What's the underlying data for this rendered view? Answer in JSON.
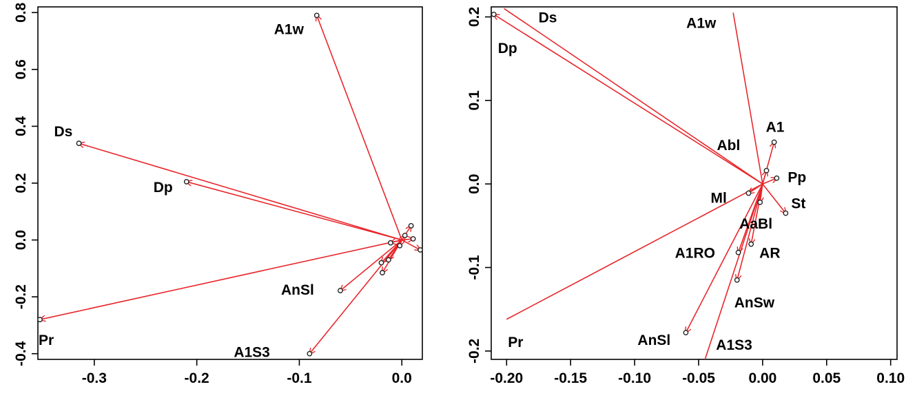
{
  "chart_data": [
    {
      "type": "scatter",
      "title": "",
      "xlabel": "",
      "ylabel": "",
      "xlim": [
        -0.355,
        0.02
      ],
      "ylim": [
        -0.42,
        0.82
      ],
      "xticks": [
        "-0.3",
        "-0.2",
        "-0.1",
        "0.0"
      ],
      "xtick_values": [
        -0.3,
        -0.2,
        -0.1,
        0.0
      ],
      "yticks": [
        "-0.4",
        "-0.2",
        "0.0",
        "0.2",
        "0.4",
        "0.6",
        "0.8"
      ],
      "ytick_values": [
        -0.4,
        -0.2,
        0.0,
        0.2,
        0.4,
        0.6,
        0.8
      ],
      "grid": false,
      "arrow_origin": [
        0.0,
        0.0
      ],
      "arrows": [
        {
          "x": -0.083,
          "y": 0.79,
          "label": "A1w"
        },
        {
          "x": -0.315,
          "y": 0.34,
          "label": "Ds"
        },
        {
          "x": -0.21,
          "y": 0.205,
          "label": "Dp"
        },
        {
          "x": -0.353,
          "y": -0.28,
          "label": "Pr"
        },
        {
          "x": -0.06,
          "y": -0.178,
          "label": "AnSl"
        },
        {
          "x": -0.09,
          "y": -0.4,
          "label": "A1S3"
        },
        {
          "x": 0.009,
          "y": 0.05,
          "label": ""
        },
        {
          "x": 0.018,
          "y": -0.035,
          "label": ""
        },
        {
          "x": 0.011,
          "y": 0.004,
          "label": ""
        },
        {
          "x": 0.003,
          "y": 0.016,
          "label": ""
        },
        {
          "x": -0.011,
          "y": -0.01,
          "label": ""
        },
        {
          "x": -0.002,
          "y": -0.02,
          "label": ""
        },
        {
          "x": -0.02,
          "y": -0.08,
          "label": ""
        },
        {
          "x": -0.013,
          "y": -0.07,
          "label": ""
        },
        {
          "x": -0.019,
          "y": -0.115,
          "label": ""
        }
      ]
    },
    {
      "type": "scatter",
      "title": "",
      "xlabel": "",
      "ylabel": "",
      "xlim": [
        -0.212,
        0.105
      ],
      "ylim": [
        -0.21,
        0.212
      ],
      "xticks": [
        "-0.20",
        "-0.15",
        "-0.10",
        "-0.05",
        "0.00",
        "0.05",
        "0.10"
      ],
      "xtick_values": [
        -0.2,
        -0.15,
        -0.1,
        -0.05,
        0.0,
        0.05,
        0.1
      ],
      "yticks": [
        "-0.2",
        "-0.1",
        "0.0",
        "0.1",
        "0.2"
      ],
      "ytick_values": [
        -0.2,
        -0.1,
        0.0,
        0.1,
        0.2
      ],
      "grid": false,
      "arrow_origin": [
        0.0,
        0.0
      ],
      "arrows": [
        {
          "x": -0.21,
          "y": 0.203,
          "label": "Dp"
        },
        {
          "x": -0.06,
          "y": -0.178,
          "label": "AnSl"
        },
        {
          "x": 0.009,
          "y": 0.05,
          "label": "A1"
        },
        {
          "x": 0.011,
          "y": 0.007,
          "label": "Pp"
        },
        {
          "x": 0.018,
          "y": -0.035,
          "label": "St"
        },
        {
          "x": 0.003,
          "y": 0.016,
          "label": "Abl"
        },
        {
          "x": -0.011,
          "y": -0.011,
          "label": "Ml"
        },
        {
          "x": -0.002,
          "y": -0.022,
          "label": "AaBl"
        },
        {
          "x": -0.009,
          "y": -0.072,
          "label": "AR"
        },
        {
          "x": -0.019,
          "y": -0.082,
          "label": "A1RO"
        },
        {
          "x": -0.02,
          "y": -0.115,
          "label": "AnSw"
        }
      ],
      "lines": [
        {
          "x": -0.202,
          "y": 0.21,
          "label": "Ds"
        },
        {
          "x": -0.023,
          "y": 0.205,
          "label": "A1w"
        },
        {
          "x": -0.2,
          "y": -0.162,
          "label": "Pr"
        },
        {
          "x": -0.045,
          "y": -0.21,
          "label": "A1S3"
        }
      ]
    }
  ]
}
